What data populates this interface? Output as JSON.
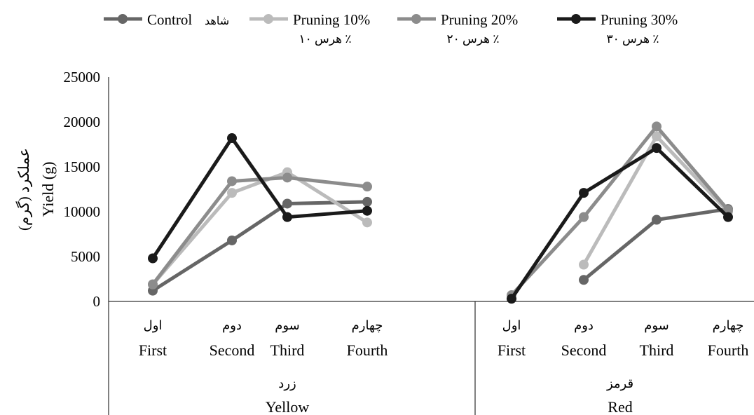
{
  "chart_data": {
    "type": "line",
    "ylabel_en": "Yield (g)",
    "ylabel_fa": "عملکرد (گرم)",
    "ylim": [
      0,
      25000
    ],
    "yticks": [
      0,
      5000,
      10000,
      15000,
      20000,
      25000
    ],
    "grid": false,
    "legend_position": "top",
    "groups": [
      {
        "label_en": "Yellow",
        "label_fa": "زرد",
        "categories_en": [
          "First",
          "Second",
          "Third",
          "Fourth"
        ],
        "categories_fa": [
          "اول",
          "دوم",
          "سوم",
          "چهارم"
        ]
      },
      {
        "label_en": "Red",
        "label_fa": "قرمز",
        "categories_en": [
          "First",
          "Second",
          "Third",
          "Fourth"
        ],
        "categories_fa": [
          "اول",
          "دوم",
          "سوم",
          "چهارم"
        ]
      }
    ],
    "series": [
      {
        "name": "Control",
        "name_fa": "شاهد",
        "color": "#666666",
        "values": [
          [
            1200,
            6800,
            10900,
            11100
          ],
          [
            null,
            2400,
            9100,
            10300
          ]
        ]
      },
      {
        "name": "Pruning 10%",
        "name_fa": "هرس ۱۰ ٪",
        "color": "#bbbbbb",
        "values": [
          [
            1900,
            12100,
            14400,
            8800
          ],
          [
            null,
            4100,
            18400,
            10000
          ]
        ]
      },
      {
        "name": "Pruning 20%",
        "name_fa": "هرس ۲۰ ٪",
        "color": "#8c8c8c",
        "values": [
          [
            1900,
            13400,
            13800,
            12800
          ],
          [
            700,
            9400,
            19500,
            10200
          ]
        ]
      },
      {
        "name": "Pruning 30%",
        "name_fa": "هرس ۳۰ ٪",
        "color": "#1a1a1a",
        "values": [
          [
            4800,
            18200,
            9400,
            10100
          ],
          [
            300,
            12100,
            17100,
            9400
          ]
        ]
      }
    ]
  }
}
